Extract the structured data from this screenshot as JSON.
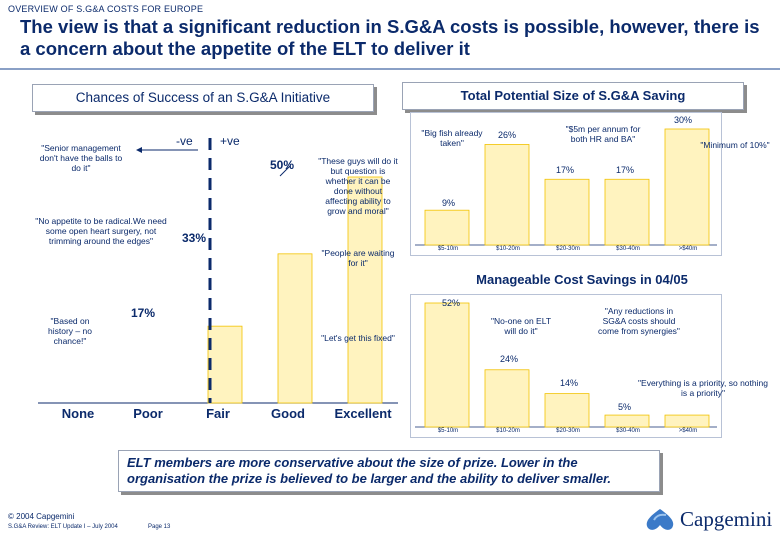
{
  "header": {
    "overview": "OVERVIEW OF S.G&A COSTS FOR EUROPE",
    "title": "The view is that a significant reduction in S.G&A costs is possible, however, there is a concern about the appetite of the ELT to deliver it"
  },
  "chart_data": [
    {
      "type": "bar",
      "title": "Chances of Success of an S.G&A Initiative",
      "categories": [
        "None",
        "Poor",
        "Fair",
        "Good",
        "Excellent"
      ],
      "values": [
        0,
        17,
        33,
        50,
        0
      ],
      "value_labels": [
        "",
        "17%",
        "33%",
        "50%",
        ""
      ],
      "axis_labels": {
        "negative": "-ve",
        "positive": "+ve"
      },
      "annotations": [
        "\"Senior management don't have the balls to do it\"",
        "\"No appetite to be radical.We need some open heart surgery, not trimming around the edges\"",
        "\"These guys will do it but question is whether it can be done without affecting ability to grow and moral\"",
        "\"People are waiting for it\"",
        "\"Based on history – no chance!\"",
        "\"Let's get this fixed\""
      ]
    },
    {
      "type": "bar",
      "title": "Total Potential Size of S.G&A Saving",
      "categories": [
        "$5-10m",
        "$10-20m",
        "$20-30m",
        "$30-40m",
        ">$40m"
      ],
      "values": [
        9,
        26,
        17,
        17,
        30
      ],
      "value_labels": [
        "9%",
        "26%",
        "17%",
        "17%",
        "30%"
      ],
      "annotations": [
        "\"Big fish already taken\"",
        "\"$5m per annum for both HR and BA\"",
        "\"Minimum of 10%\""
      ]
    },
    {
      "type": "bar",
      "title": "Manageable Cost Savings in 04/05",
      "categories": [
        "$5-10m",
        "$10-20m",
        "$20-30m",
        "$30-40m",
        ">$40m"
      ],
      "values": [
        52,
        24,
        14,
        5,
        5
      ],
      "value_labels": [
        "52%",
        "24%",
        "14%",
        "5%",
        ""
      ],
      "annotations": [
        "\"No-one on ELT will do it\"",
        "\"Any reductions in SG&A costs should come from synergies\"",
        "\"Everything is a priority, so nothing is a priority\""
      ]
    }
  ],
  "note": "ELT members are more conservative about the size of prize. Lower in the organisation the prize is believed to be larger and the ability to deliver smaller.",
  "footer": {
    "copyright": "© 2004 Capgemini",
    "doc": "S.G&A Review: ELT Update I – July 2004",
    "page": "Page 13",
    "brand": "Capgemini"
  },
  "colors": {
    "navy": "#0b2a6b",
    "bar": "#fff3bf",
    "bar_border": "#f2c200"
  }
}
